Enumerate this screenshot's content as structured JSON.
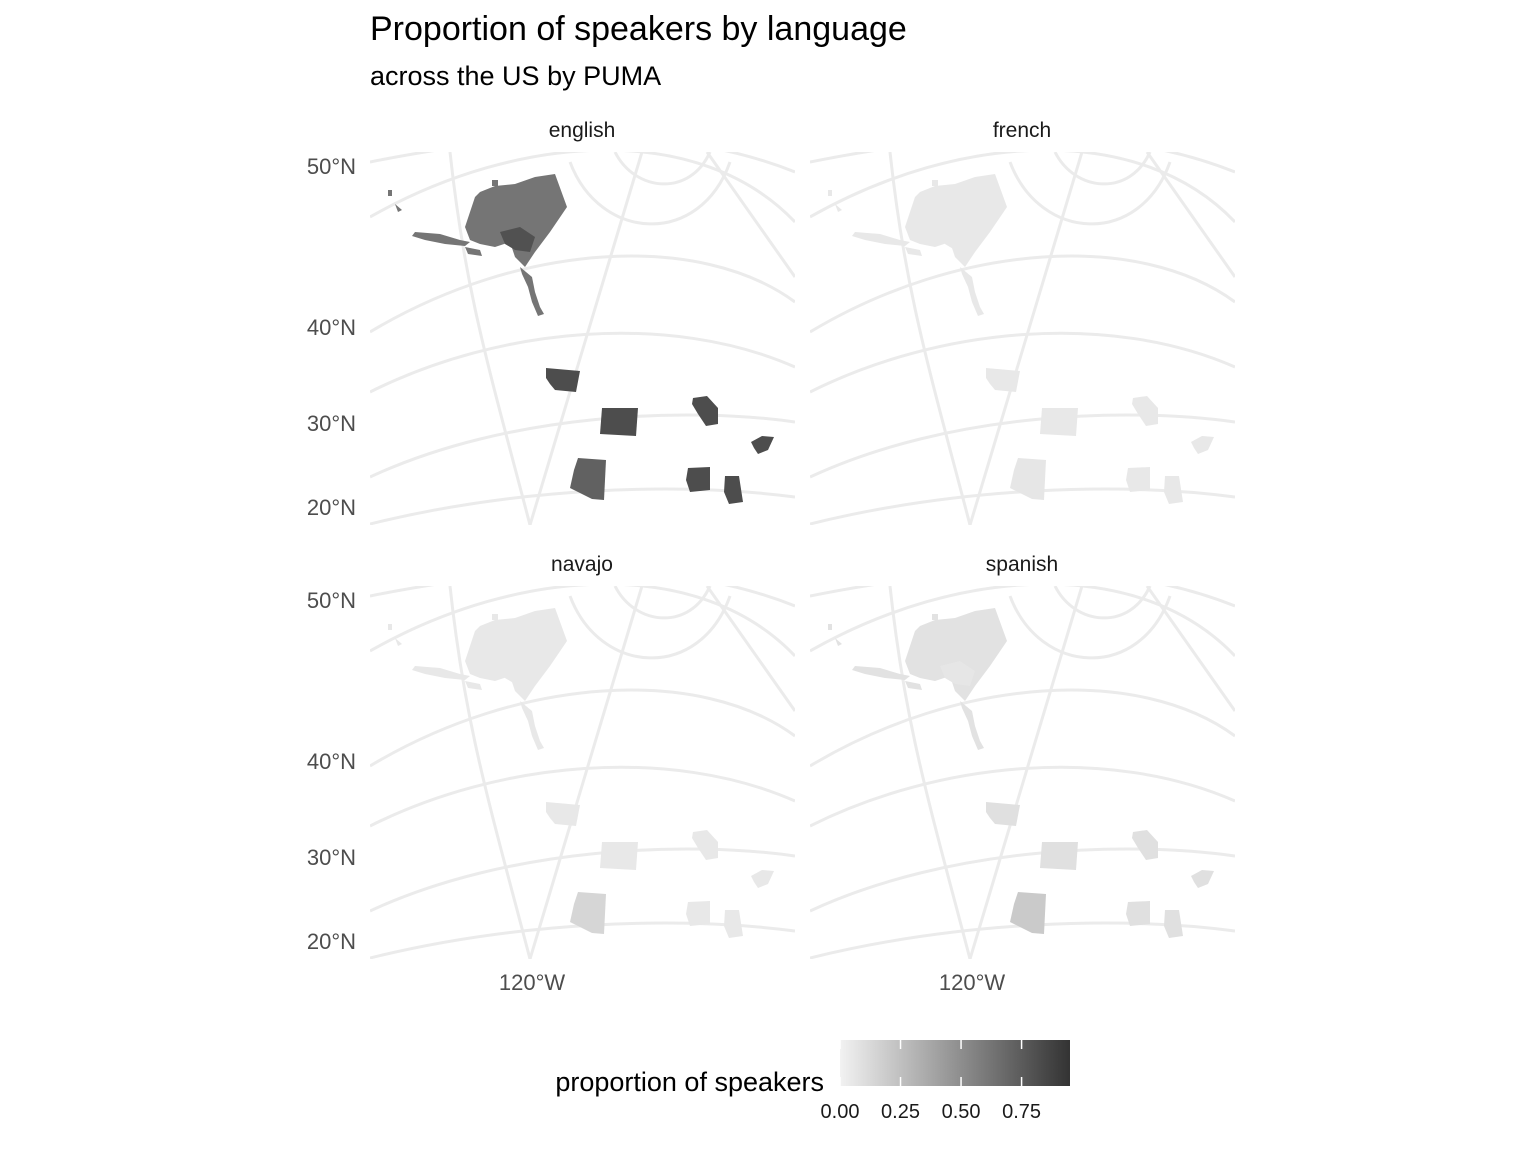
{
  "title": "Proportion of speakers by language",
  "subtitle": "across the US by PUMA",
  "panels": [
    {
      "name": "english",
      "tone": 0.82,
      "ak_tone": 0.62,
      "ak_inner_tone": 0.8,
      "az_tone": 0.72
    },
    {
      "name": "french",
      "tone": 0.05,
      "ak_tone": 0.05,
      "ak_inner_tone": 0.05,
      "az_tone": 0.06
    },
    {
      "name": "navajo",
      "tone": 0.05,
      "ak_tone": 0.05,
      "ak_inner_tone": 0.05,
      "az_tone": 0.14
    },
    {
      "name": "spanish",
      "tone": 0.09,
      "ak_tone": 0.08,
      "ak_inner_tone": 0.06,
      "az_tone": 0.2
    }
  ],
  "lat_labels": [
    "50°N",
    "40°N",
    "30°N",
    "20°N"
  ],
  "lon_labels": [
    "120°W"
  ],
  "legend": {
    "title": "proportion of speakers",
    "breaks": [
      "0.00",
      "0.25",
      "0.50",
      "0.75"
    ],
    "range": [
      0,
      0.95
    ],
    "color_low": "#f2f2f2",
    "color_high": "#333333"
  }
}
